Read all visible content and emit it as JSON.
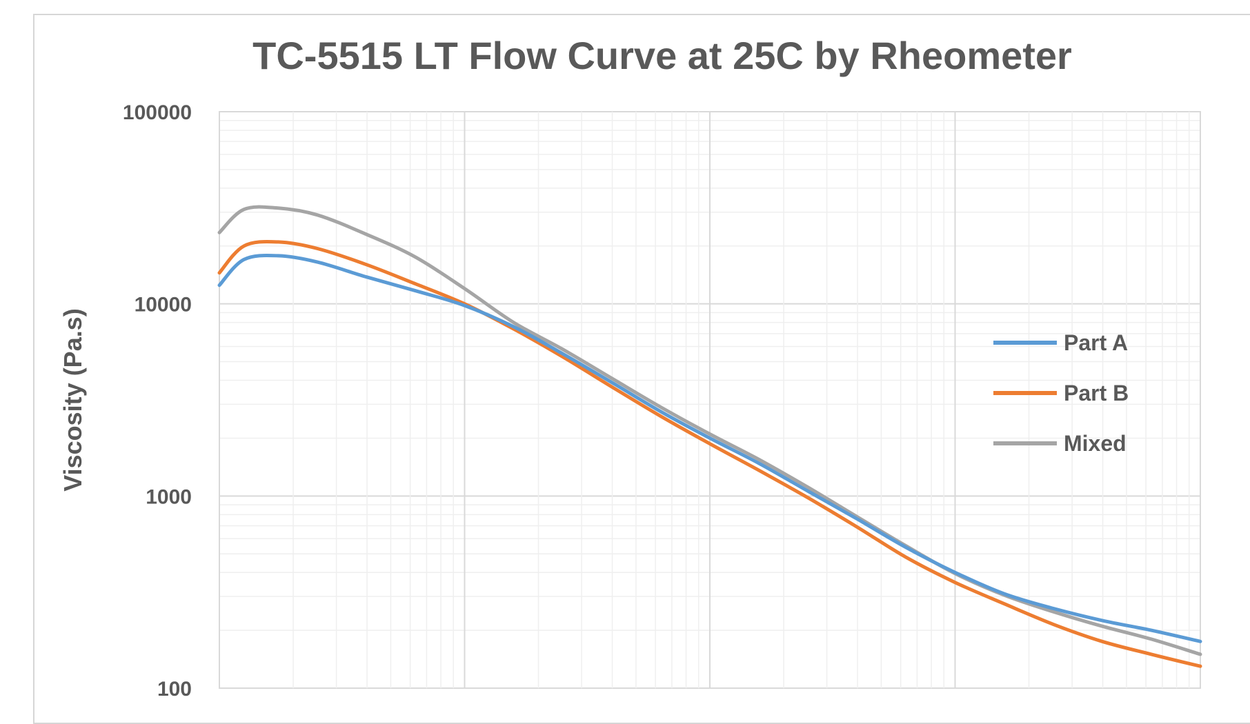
{
  "chart_data": {
    "type": "line",
    "title": "TC-5515 LT Flow Curve at 25C by Rheometer",
    "xlabel": "",
    "ylabel": "Viscosity (Pa.s)",
    "yscale": "log",
    "ylim": [
      100,
      100000
    ],
    "xlim": [
      0,
      1
    ],
    "y_ticks": [
      "100000",
      "10000",
      "1000",
      "100"
    ],
    "legend_position": "right",
    "series": [
      {
        "name": "Part A",
        "color": "#5b9bd5",
        "x": [
          0.0,
          0.025,
          0.06,
          0.1,
          0.15,
          0.2,
          0.25,
          0.3,
          0.35,
          0.4,
          0.45,
          0.5,
          0.55,
          0.6,
          0.65,
          0.7,
          0.75,
          0.8,
          0.85,
          0.9,
          0.95,
          1.0
        ],
        "y": [
          12500,
          17000,
          17800,
          16500,
          13800,
          11700,
          9800,
          7600,
          5500,
          3900,
          2750,
          2000,
          1480,
          1060,
          760,
          540,
          400,
          310,
          260,
          225,
          200,
          175
        ]
      },
      {
        "name": "Part B",
        "color": "#ed7d31",
        "x": [
          0.0,
          0.025,
          0.06,
          0.1,
          0.15,
          0.2,
          0.25,
          0.3,
          0.35,
          0.4,
          0.45,
          0.5,
          0.55,
          0.6,
          0.65,
          0.7,
          0.75,
          0.8,
          0.85,
          0.9,
          0.95,
          1.0
        ],
        "y": [
          14500,
          20000,
          21000,
          19400,
          16000,
          12700,
          10000,
          7400,
          5300,
          3700,
          2600,
          1870,
          1360,
          980,
          690,
          480,
          355,
          275,
          215,
          175,
          150,
          130
        ]
      },
      {
        "name": "Mixed",
        "color": "#a5a5a5",
        "x": [
          0.0,
          0.025,
          0.06,
          0.1,
          0.15,
          0.2,
          0.25,
          0.3,
          0.35,
          0.4,
          0.45,
          0.5,
          0.55,
          0.6,
          0.65,
          0.7,
          0.75,
          0.8,
          0.85,
          0.9,
          0.95,
          1.0
        ],
        "y": [
          23500,
          31000,
          31500,
          29000,
          23000,
          17500,
          12000,
          8000,
          5800,
          4100,
          2900,
          2100,
          1550,
          1110,
          780,
          550,
          395,
          305,
          250,
          210,
          180,
          150
        ]
      }
    ]
  }
}
